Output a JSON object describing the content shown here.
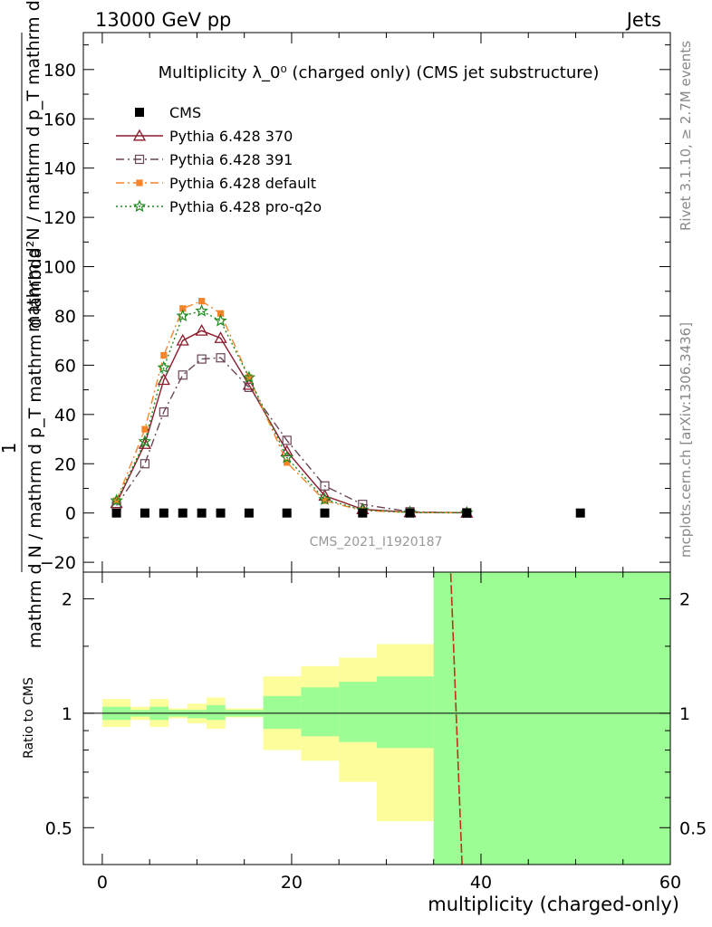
{
  "header": {
    "energy_label": "13000 GeV pp",
    "category_label": "Jets",
    "rivet_label": "Rivet 3.1.10, ≥ 2.7M events",
    "mcplots_label": "mcplots.cern.ch [arXiv:1306.3436]",
    "analysis_label": "CMS_2021_I1920187"
  },
  "chart_data": [
    {
      "type": "line",
      "title": "Multiplicity λ_0⁰ (charged only) (CMS jet substructure)",
      "ylabel_num": "1",
      "ylabel_den": "mathrm d N / mathrm d p_T mathrm d lambda",
      "ylabel_tail": "mathrm d²N / mathrm d p_T mathrm d lambda",
      "xlim": [
        -2,
        60
      ],
      "ylim": [
        -24,
        195
      ],
      "xticks": [
        0,
        20,
        40,
        60
      ],
      "yticks": [
        -20,
        0,
        20,
        40,
        60,
        80,
        100,
        120,
        140,
        160,
        180
      ],
      "legend_position": "top-left",
      "data_points": {
        "name": "CMS",
        "x": [
          1.5,
          4.5,
          6.5,
          8.5,
          10.5,
          12.5,
          15.5,
          19.5,
          23.5,
          27.5,
          32.5,
          38.5,
          50.5
        ],
        "y": [
          0,
          0,
          0,
          0,
          0,
          0,
          0,
          0,
          0,
          0,
          0,
          0,
          0
        ]
      },
      "series": [
        {
          "name": "Pythia 6.428 370",
          "color": "#8b1a2b",
          "dash": "solid",
          "marker": "triangle-open",
          "x": [
            1.5,
            4.5,
            6.5,
            8.5,
            10.5,
            12.5,
            15.5,
            19.5,
            23.5,
            27.5,
            32.5,
            38.5
          ],
          "y": [
            4,
            28,
            54,
            70,
            74,
            71,
            52,
            25,
            7,
            1.5,
            0.3,
            0.1
          ]
        },
        {
          "name": "Pythia 6.428 391",
          "color": "#6b4458",
          "dash": "dashdot",
          "marker": "square-open",
          "x": [
            1.5,
            4.5,
            6.5,
            8.5,
            10.5,
            12.5,
            15.5,
            19.5,
            23.5,
            27.5,
            32.5,
            38.5
          ],
          "y": [
            3,
            20,
            41,
            56,
            62.5,
            63,
            51,
            29.5,
            11,
            3.5,
            0.5,
            0.1
          ]
        },
        {
          "name": "Pythia 6.428 default",
          "color": "#f5842a",
          "dash": "dashdot",
          "marker": "square-filled",
          "x": [
            1.5,
            4.5,
            6.5,
            8.5,
            10.5,
            12.5,
            15.5,
            19.5,
            23.5,
            27.5,
            32.5,
            38.5
          ],
          "y": [
            5,
            34,
            64,
            83,
            86,
            81,
            55,
            20.5,
            5,
            1,
            0.2,
            0.05
          ]
        },
        {
          "name": "Pythia 6.428 pro-q2o",
          "color": "#1f8a1f",
          "dash": "dotted",
          "marker": "star-open",
          "x": [
            1.5,
            4.5,
            6.5,
            8.5,
            10.5,
            12.5,
            15.5,
            19.5,
            23.5,
            27.5,
            32.5,
            38.5
          ],
          "y": [
            5,
            29,
            59,
            80,
            82,
            78,
            55,
            22.5,
            5.5,
            1.2,
            0.2,
            0.05
          ]
        }
      ]
    },
    {
      "type": "area",
      "ylabel": "Ratio to CMS",
      "xlabel": "multiplicity (charged-only)",
      "xlim": [
        -2,
        60
      ],
      "ylim": [
        0.4,
        2.35
      ],
      "scale": "log",
      "yticks": [
        0.5,
        1,
        2
      ],
      "ytick_labels": [
        "0.5",
        "1",
        "2"
      ],
      "xticks": [
        0,
        20,
        40,
        60
      ],
      "stat_band_color": "#9cfd94",
      "syst_band_color": "#fdfd9c",
      "bins": [
        {
          "lo": 0,
          "hi": 3,
          "inner": [
            0.96,
            1.04
          ],
          "outer": [
            0.92,
            1.09
          ]
        },
        {
          "lo": 3,
          "hi": 5,
          "inner": [
            0.98,
            1.02
          ],
          "outer": [
            0.96,
            1.04
          ]
        },
        {
          "lo": 5,
          "hi": 7,
          "inner": [
            0.96,
            1.04
          ],
          "outer": [
            0.92,
            1.09
          ]
        },
        {
          "lo": 7,
          "hi": 9,
          "inner": [
            0.98,
            1.02
          ],
          "outer": [
            0.97,
            1.03
          ]
        },
        {
          "lo": 9,
          "hi": 11,
          "inner": [
            0.97,
            1.02
          ],
          "outer": [
            0.94,
            1.06
          ]
        },
        {
          "lo": 11,
          "hi": 13,
          "inner": [
            0.96,
            1.05
          ],
          "outer": [
            0.91,
            1.1
          ]
        },
        {
          "lo": 13,
          "hi": 17,
          "inner": [
            0.98,
            1.02
          ],
          "outer": [
            0.975,
            1.03
          ]
        },
        {
          "lo": 17,
          "hi": 21,
          "inner": [
            0.91,
            1.11
          ],
          "outer": [
            0.8,
            1.25
          ]
        },
        {
          "lo": 21,
          "hi": 25,
          "inner": [
            0.87,
            1.17
          ],
          "outer": [
            0.75,
            1.33
          ]
        },
        {
          "lo": 25,
          "hi": 29,
          "inner": [
            0.84,
            1.21
          ],
          "outer": [
            0.66,
            1.4
          ]
        },
        {
          "lo": 29,
          "hi": 35,
          "inner": [
            0.81,
            1.25
          ],
          "outer": [
            0.52,
            1.52
          ]
        },
        {
          "lo": 35,
          "hi": 60,
          "inner": [
            0.0,
            10.0
          ],
          "outer": [
            0.0,
            10.0
          ]
        }
      ],
      "ratio_line": {
        "x": [
          38.0,
          36.8
        ],
        "y": [
          0.35,
          2.35
        ],
        "color": "#c03020"
      }
    }
  ]
}
